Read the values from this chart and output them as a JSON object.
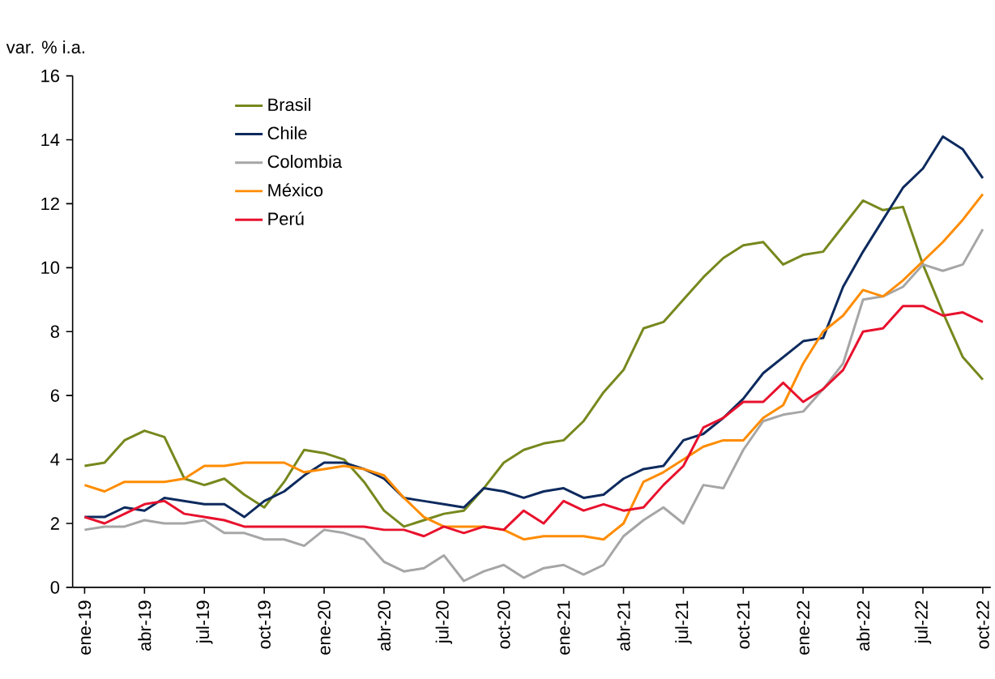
{
  "chart_data": {
    "type": "line",
    "ylabel": "var. % i.a.",
    "categories": [
      "ene-19",
      null,
      null,
      "abr-19",
      null,
      null,
      "jul-19",
      null,
      null,
      "oct-19",
      null,
      null,
      "ene-20",
      null,
      null,
      "abr-20",
      null,
      null,
      "jul-20",
      null,
      null,
      "oct-20",
      null,
      null,
      "ene-21",
      null,
      null,
      "abr-21",
      null,
      null,
      "jul-21",
      null,
      null,
      "oct-21",
      null,
      null,
      "ene-22",
      null,
      null,
      "abr-22",
      null,
      null,
      "jul-22",
      null,
      null,
      "oct-22"
    ],
    "series": [
      {
        "name": "Brasil",
        "color": "#76881d",
        "values": [
          3.8,
          3.9,
          4.6,
          4.9,
          4.7,
          3.4,
          3.2,
          3.4,
          2.9,
          2.5,
          3.3,
          4.3,
          4.2,
          4.0,
          3.3,
          2.4,
          1.9,
          2.1,
          2.3,
          2.4,
          3.1,
          3.9,
          4.3,
          4.5,
          4.6,
          5.2,
          6.1,
          6.8,
          8.1,
          8.3,
          9.0,
          9.7,
          10.3,
          10.7,
          10.8,
          10.1,
          10.4,
          10.5,
          11.3,
          12.1,
          11.8,
          11.9,
          10.1,
          8.6,
          7.2,
          6.5
        ]
      },
      {
        "name": "Chile",
        "color": "#0d2a5e",
        "values": [
          2.2,
          2.2,
          2.5,
          2.4,
          2.8,
          2.7,
          2.6,
          2.6,
          2.2,
          2.7,
          3.0,
          3.5,
          3.9,
          3.9,
          3.7,
          3.4,
          2.8,
          2.7,
          2.6,
          2.5,
          3.1,
          3.0,
          2.8,
          3.0,
          3.1,
          2.8,
          2.9,
          3.4,
          3.7,
          3.8,
          4.6,
          4.8,
          5.3,
          5.9,
          6.7,
          7.2,
          7.7,
          7.8,
          9.4,
          10.5,
          11.5,
          12.5,
          13.1,
          14.1,
          13.7,
          12.8
        ]
      },
      {
        "name": "Colombia",
        "color": "#a6a6a6",
        "values": [
          1.8,
          1.9,
          1.9,
          2.1,
          2.0,
          2.0,
          2.1,
          1.7,
          1.7,
          1.5,
          1.5,
          1.3,
          1.8,
          1.7,
          1.5,
          0.8,
          0.5,
          0.6,
          1.0,
          0.2,
          0.5,
          0.7,
          0.3,
          0.6,
          0.7,
          0.4,
          0.7,
          1.6,
          2.1,
          2.5,
          2.0,
          3.2,
          3.1,
          4.3,
          5.2,
          5.4,
          5.5,
          6.2,
          7.0,
          9.0,
          9.1,
          9.4,
          10.1,
          9.9,
          10.1,
          11.2
        ]
      },
      {
        "name": "México",
        "color": "#ff8c00",
        "values": [
          3.2,
          3.0,
          3.3,
          3.3,
          3.3,
          3.4,
          3.8,
          3.8,
          3.9,
          3.9,
          3.9,
          3.6,
          3.7,
          3.8,
          3.7,
          3.5,
          2.8,
          2.2,
          1.9,
          1.9,
          1.9,
          1.8,
          1.5,
          1.6,
          1.6,
          1.6,
          1.5,
          2.0,
          3.3,
          3.6,
          4.0,
          4.4,
          4.6,
          4.6,
          5.3,
          5.7,
          7.0,
          8.0,
          8.5,
          9.3,
          9.1,
          9.6,
          10.2,
          10.8,
          11.5,
          12.3
        ]
      },
      {
        "name": "Perú",
        "color": "#e8112d",
        "values": [
          2.2,
          2.0,
          2.3,
          2.6,
          2.7,
          2.3,
          2.2,
          2.1,
          1.9,
          1.9,
          1.9,
          1.9,
          1.9,
          1.9,
          1.9,
          1.8,
          1.8,
          1.6,
          1.9,
          1.7,
          1.9,
          1.8,
          2.4,
          2.0,
          2.7,
          2.4,
          2.6,
          2.4,
          2.5,
          3.2,
          3.8,
          5.0,
          5.3,
          5.8,
          5.8,
          6.4,
          5.8,
          6.2,
          6.8,
          8.0,
          8.1,
          8.8,
          8.8,
          8.5,
          8.6,
          8.3
        ]
      }
    ],
    "ylim": [
      0,
      16
    ],
    "yticks": [
      0,
      2,
      4,
      6,
      8,
      10,
      12,
      14,
      16
    ],
    "legend": "top left",
    "grid": false
  }
}
